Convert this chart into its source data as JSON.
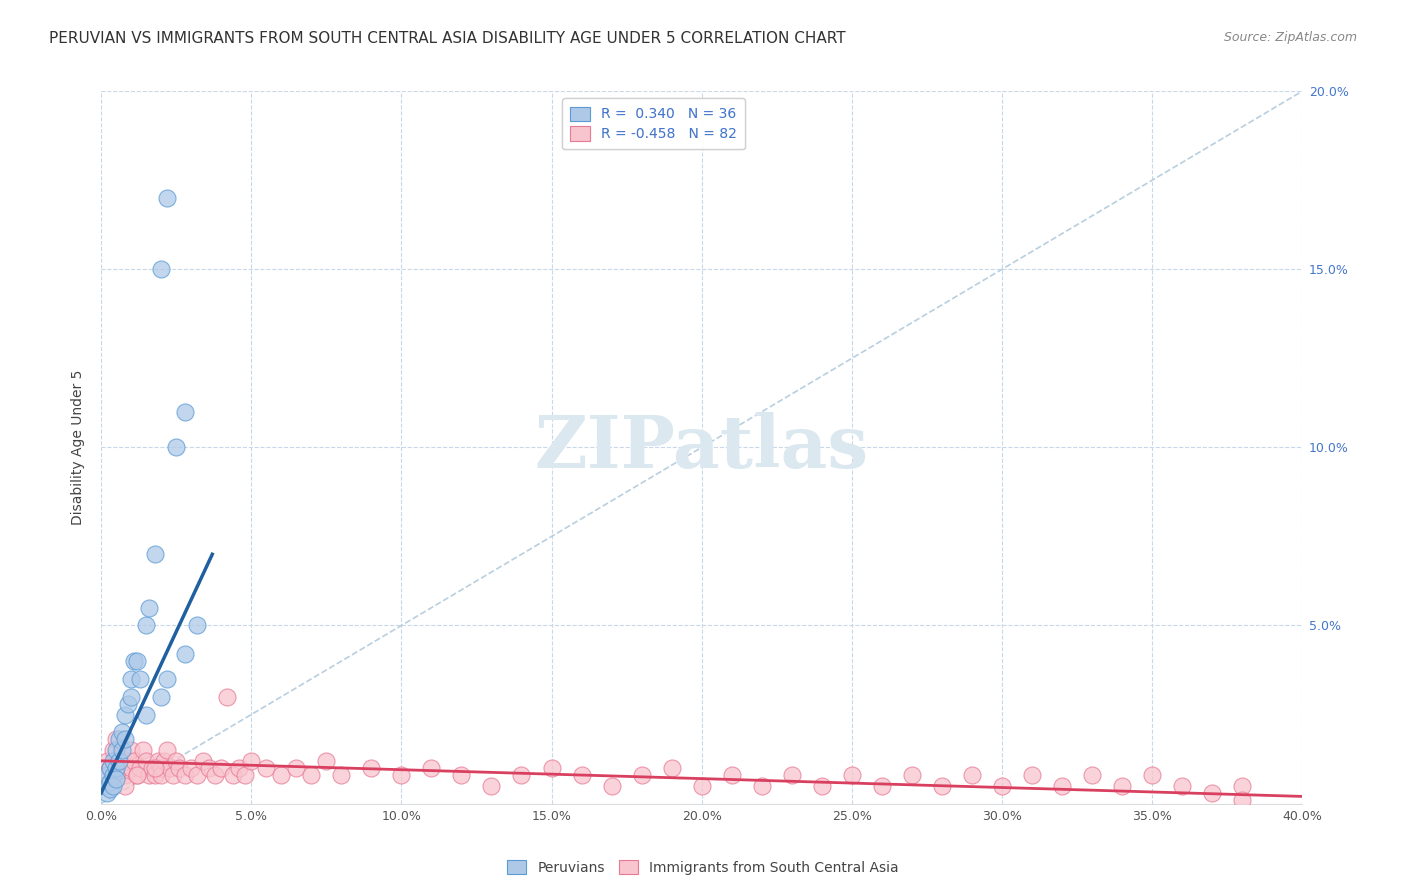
{
  "title": "PERUVIAN VS IMMIGRANTS FROM SOUTH CENTRAL ASIA DISABILITY AGE UNDER 5 CORRELATION CHART",
  "source": "Source: ZipAtlas.com",
  "ylabel": "Disability Age Under 5",
  "xlim": [
    0.0,
    0.4
  ],
  "ylim": [
    0.0,
    0.2
  ],
  "xticks": [
    0.0,
    0.05,
    0.1,
    0.15,
    0.2,
    0.25,
    0.3,
    0.35,
    0.4
  ],
  "yticks": [
    0.0,
    0.05,
    0.1,
    0.15,
    0.2
  ],
  "xtick_labels": [
    "0.0%",
    "5.0%",
    "10.0%",
    "15.0%",
    "20.0%",
    "25.0%",
    "30.0%",
    "35.0%",
    "40.0%"
  ],
  "ytick_labels": [
    "",
    "5.0%",
    "10.0%",
    "15.0%",
    "20.0%"
  ],
  "blue_fill": "#aec9e8",
  "blue_edge": "#5b9bd5",
  "pink_fill": "#f8c4ce",
  "pink_edge": "#e87a95",
  "blue_line_color": "#2060a0",
  "pink_line_color": "#d94060",
  "diag_color": "#b8cfe0",
  "R_blue": 0.34,
  "N_blue": 36,
  "R_pink": -0.458,
  "N_pink": 82,
  "blue_scatter_x": [
    0.001,
    0.002,
    0.002,
    0.003,
    0.003,
    0.003,
    0.004,
    0.004,
    0.004,
    0.005,
    0.005,
    0.005,
    0.006,
    0.006,
    0.007,
    0.007,
    0.008,
    0.008,
    0.009,
    0.01,
    0.01,
    0.011,
    0.012,
    0.013,
    0.015,
    0.016,
    0.018,
    0.02,
    0.022,
    0.025,
    0.028,
    0.032,
    0.022,
    0.028,
    0.02,
    0.015
  ],
  "blue_scatter_y": [
    0.005,
    0.008,
    0.003,
    0.01,
    0.006,
    0.004,
    0.012,
    0.008,
    0.005,
    0.015,
    0.01,
    0.007,
    0.018,
    0.012,
    0.02,
    0.015,
    0.025,
    0.018,
    0.028,
    0.03,
    0.035,
    0.04,
    0.04,
    0.035,
    0.05,
    0.055,
    0.07,
    0.15,
    0.17,
    0.1,
    0.11,
    0.05,
    0.035,
    0.042,
    0.03,
    0.025
  ],
  "pink_scatter_x": [
    0.001,
    0.002,
    0.003,
    0.004,
    0.005,
    0.006,
    0.007,
    0.008,
    0.009,
    0.01,
    0.01,
    0.011,
    0.012,
    0.013,
    0.014,
    0.015,
    0.016,
    0.017,
    0.018,
    0.019,
    0.02,
    0.02,
    0.021,
    0.022,
    0.023,
    0.024,
    0.025,
    0.026,
    0.028,
    0.03,
    0.032,
    0.034,
    0.036,
    0.038,
    0.04,
    0.042,
    0.044,
    0.046,
    0.048,
    0.05,
    0.055,
    0.06,
    0.065,
    0.07,
    0.075,
    0.08,
    0.09,
    0.1,
    0.11,
    0.12,
    0.13,
    0.14,
    0.15,
    0.16,
    0.17,
    0.18,
    0.19,
    0.2,
    0.21,
    0.22,
    0.23,
    0.24,
    0.25,
    0.26,
    0.27,
    0.28,
    0.29,
    0.3,
    0.31,
    0.32,
    0.33,
    0.34,
    0.35,
    0.36,
    0.37,
    0.38,
    0.003,
    0.005,
    0.008,
    0.012,
    0.018,
    0.38
  ],
  "pink_scatter_y": [
    0.008,
    0.012,
    0.01,
    0.015,
    0.018,
    0.012,
    0.01,
    0.008,
    0.012,
    0.015,
    0.01,
    0.012,
    0.008,
    0.01,
    0.015,
    0.012,
    0.008,
    0.01,
    0.008,
    0.012,
    0.01,
    0.008,
    0.012,
    0.015,
    0.01,
    0.008,
    0.012,
    0.01,
    0.008,
    0.01,
    0.008,
    0.012,
    0.01,
    0.008,
    0.01,
    0.03,
    0.008,
    0.01,
    0.008,
    0.012,
    0.01,
    0.008,
    0.01,
    0.008,
    0.012,
    0.008,
    0.01,
    0.008,
    0.01,
    0.008,
    0.005,
    0.008,
    0.01,
    0.008,
    0.005,
    0.008,
    0.01,
    0.005,
    0.008,
    0.005,
    0.008,
    0.005,
    0.008,
    0.005,
    0.008,
    0.005,
    0.008,
    0.005,
    0.008,
    0.005,
    0.008,
    0.005,
    0.008,
    0.005,
    0.003,
    0.005,
    0.01,
    0.008,
    0.005,
    0.008,
    0.01,
    0.001
  ],
  "background_color": "#ffffff",
  "grid_color": "#c8d8e8",
  "title_fontsize": 11,
  "axis_fontsize": 10,
  "tick_fontsize": 9,
  "legend_fontsize": 10,
  "watermark_text": "ZIPatlas",
  "watermark_color": "#dce8f0"
}
